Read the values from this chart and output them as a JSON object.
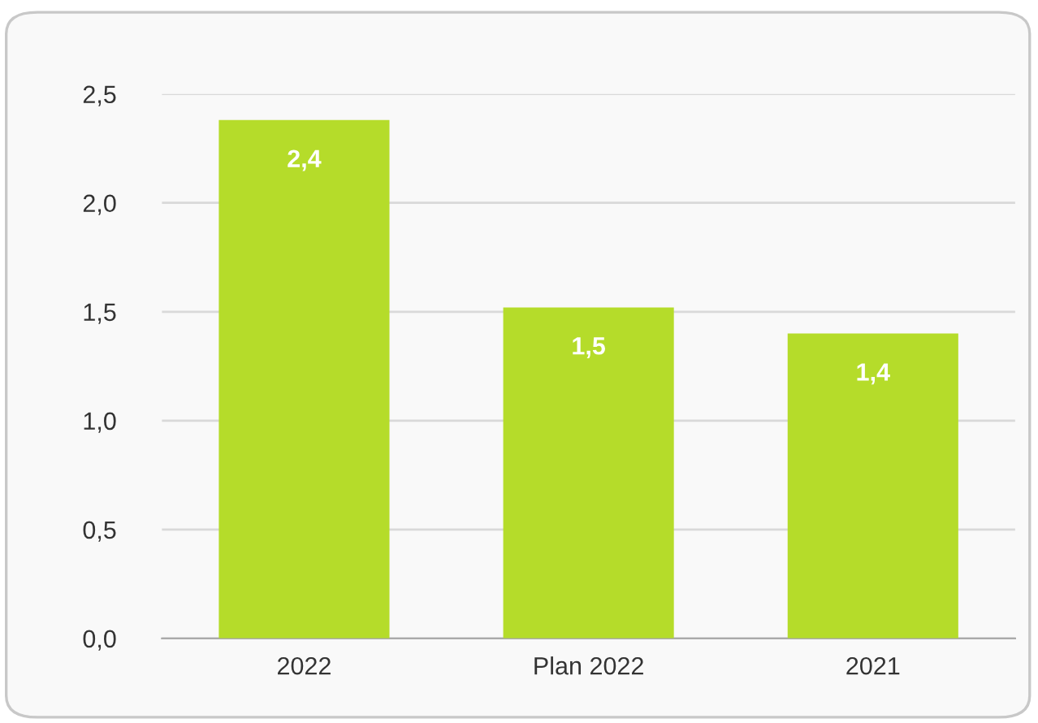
{
  "chart_data": {
    "type": "bar",
    "categories": [
      "2022",
      "Plan 2022",
      "2021"
    ],
    "values": [
      2.38,
      1.52,
      1.4
    ],
    "value_labels": [
      "2,4",
      "1,5",
      "1,4"
    ],
    "color": "#b5dc2a",
    "ylim": [
      0,
      2.5
    ],
    "yticks": [
      {
        "value": 0,
        "label": "0,0"
      },
      {
        "value": 0.5,
        "label": "0,5"
      },
      {
        "value": 1.0,
        "label": "1,0"
      },
      {
        "value": 1.5,
        "label": "1,5"
      },
      {
        "value": 2.0,
        "label": "2,0"
      },
      {
        "value": 2.5,
        "label": "2,5"
      }
    ],
    "grid": "y"
  }
}
